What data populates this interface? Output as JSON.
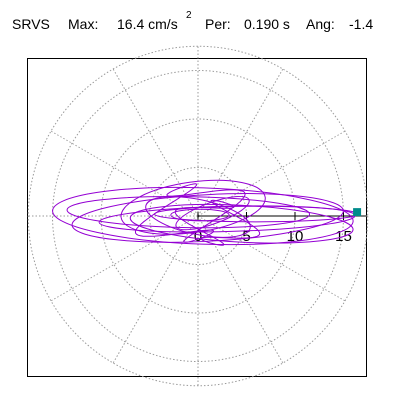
{
  "header": {
    "code": "SRVS",
    "max_label": "Max:",
    "max_value": "16.4 cm/s",
    "max_unit_superscript": "2",
    "per_label": "Per:",
    "per_value": "0.190 s",
    "ang_label": "Ang:",
    "ang_value": "-1.4"
  },
  "chart_data": {
    "type": "scatter",
    "title": "SRVS   Max:  16.4 cm/s2  Per:  0.190 s   Ang:  -1.4",
    "coordinate_system": "polar",
    "r_ticks": [
      0,
      5,
      10,
      15
    ],
    "r_tick_labels": [
      "0",
      "5",
      "10",
      "15"
    ],
    "r_max": 17.5,
    "grid": true,
    "grid_rings": [
      5,
      10,
      15
    ],
    "grid_spokes_every_degrees": 30,
    "max_amplitude": 16.4,
    "period_s": 0.19,
    "angle_deg": -1.4,
    "max_point": {
      "x": 16.4,
      "y": 0.4
    },
    "trace_color": "#9400d3",
    "max_marker_color": "#008b8b",
    "trace_ellipses": [
      {
        "cx": 0.5,
        "cy": 0.0,
        "rx": 15.5,
        "ry": 2.9,
        "rot_deg": -2
      },
      {
        "cx": 1.0,
        "cy": -0.2,
        "rx": 14.0,
        "ry": 2.4,
        "rot_deg": 3
      },
      {
        "cx": -1.0,
        "cy": 0.4,
        "rx": 12.5,
        "ry": 1.6,
        "rot_deg": -1
      },
      {
        "cx": 3.0,
        "cy": -0.3,
        "rx": 13.2,
        "ry": 1.3,
        "rot_deg": 1.5
      },
      {
        "cx": 4.5,
        "cy": -0.8,
        "rx": 11.5,
        "ry": 1.9,
        "rot_deg": -3
      },
      {
        "cx": -0.5,
        "cy": 0.9,
        "rx": 7.5,
        "ry": 2.6,
        "rot_deg": 8
      },
      {
        "cx": 0.0,
        "cy": -0.1,
        "rx": 5.5,
        "ry": 1.8,
        "rot_deg": -12
      },
      {
        "cx": 1.5,
        "cy": 0.3,
        "rx": 4.0,
        "ry": 1.1,
        "rot_deg": 20
      },
      {
        "cx": 0.2,
        "cy": 0.1,
        "rx": 3.0,
        "ry": 0.6,
        "rot_deg": 0
      },
      {
        "cx": 6.0,
        "cy": 0.2,
        "rx": 10.5,
        "ry": 0.8,
        "rot_deg": 0
      }
    ],
    "trace_cycles": [
      {
        "cx": -0.8,
        "cy": 0.3,
        "a": 6.0,
        "b": 2.8,
        "rot_deg": 20
      },
      {
        "cx": 2.0,
        "cy": -0.7,
        "a": 4.5,
        "b": 2.2,
        "rot_deg": -15
      }
    ]
  }
}
